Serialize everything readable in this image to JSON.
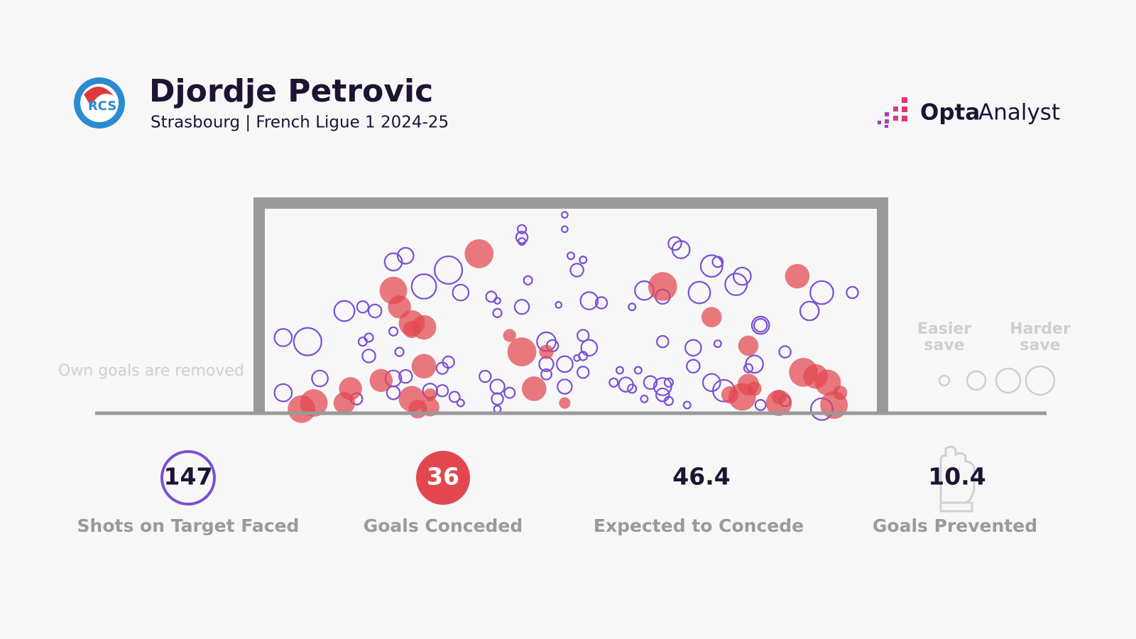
{
  "header": {
    "title": "Djordje Petrovic",
    "subtitle": "Strasbourg | French Ligue 1 2024-25"
  },
  "brand": {
    "primary": "Opta",
    "secondary": "Analyst"
  },
  "note": "Own goals are removed",
  "legend": {
    "easier": "Easier save",
    "harder": "Harder save"
  },
  "stats": [
    {
      "value": 147,
      "label": "Shots on Target Faced"
    },
    {
      "value": 36,
      "label": "Goals Conceded"
    },
    {
      "value": 46.4,
      "label": "Expected to Concede"
    },
    {
      "value": 10.4,
      "label": "Goals Prevented"
    }
  ],
  "chart_data": {
    "type": "scatter",
    "xlim": [
      0,
      100
    ],
    "ylim": [
      0,
      100
    ],
    "series": [
      {
        "color": "#7b4fd4",
        "filled": false,
        "x": [
          49,
          49,
          42,
          42,
          42,
          21,
          23,
          30,
          26,
          32,
          13,
          16,
          18,
          43,
          50,
          52,
          51,
          37,
          38,
          38,
          42,
          48,
          53,
          55,
          60,
          67,
          68,
          73,
          74,
          78,
          77,
          62,
          65,
          71,
          91,
          96,
          89,
          81,
          81,
          3,
          7,
          16,
          17,
          17,
          21,
          22,
          46,
          47,
          52,
          53,
          52,
          51,
          65,
          70,
          74,
          70,
          85,
          80,
          79,
          29,
          30,
          21,
          23,
          9,
          46,
          46,
          49,
          52,
          36,
          38,
          40,
          38,
          38,
          3,
          21,
          27,
          29,
          31,
          32,
          49,
          58,
          57,
          61,
          59,
          60,
          63,
          65,
          66,
          65,
          62,
          66,
          69,
          73,
          75,
          81,
          85,
          91,
          15
        ],
        "y": [
          97,
          90,
          90,
          86,
          84,
          74,
          77,
          70,
          62,
          59,
          50,
          52,
          50,
          65,
          77,
          75,
          70,
          57,
          55,
          49,
          52,
          53,
          55,
          54,
          52,
          83,
          80,
          72,
          74,
          67,
          63,
          60,
          57,
          59,
          59,
          59,
          50,
          43,
          43,
          37,
          35,
          35,
          37,
          28,
          40,
          30,
          35,
          33,
          38,
          32,
          28,
          27,
          35,
          32,
          34,
          23,
          30,
          24,
          22,
          22,
          25,
          17,
          18,
          17,
          24,
          19,
          24,
          20,
          18,
          13,
          10,
          7,
          2,
          10,
          10,
          11,
          11,
          8,
          5,
          13,
          21,
          15,
          21,
          14,
          12,
          15,
          13,
          15,
          9,
          7,
          6,
          4,
          15,
          11,
          4,
          6,
          2,
          7
        ],
        "size": [
          0.03,
          0.03,
          0.06,
          0.11,
          0.04,
          0.25,
          0.21,
          0.63,
          0.5,
          0.21,
          0.34,
          0.11,
          0.14,
          0.06,
          0.04,
          0.04,
          0.14,
          0.09,
          0.03,
          0.06,
          0.17,
          0.03,
          0.25,
          0.11,
          0.04,
          0.14,
          0.25,
          0.39,
          0.09,
          0.25,
          0.39,
          0.29,
          0.17,
          0.39,
          0.44,
          0.11,
          0.29,
          0.25,
          0.14,
          0.25,
          0.63,
          0.06,
          0.06,
          0.14,
          0.06,
          0.06,
          0.29,
          0.11,
          0.11,
          0.21,
          0.06,
          0.03,
          0.11,
          0.21,
          0.04,
          0.14,
          0.11,
          0.25,
          0.06,
          0.11,
          0.11,
          0.21,
          0.14,
          0.21,
          0.17,
          0.09,
          0.21,
          0.11,
          0.11,
          0.17,
          0.09,
          0.11,
          0.04,
          0.25,
          0.14,
          0.17,
          0.11,
          0.09,
          0.04,
          0.17,
          0.04,
          0.06,
          0.04,
          0.17,
          0.06,
          0.14,
          0.25,
          0.06,
          0.14,
          0.04,
          0.06,
          0.04,
          0.25,
          0.39,
          0.09,
          0.09,
          0.39,
          0.11
        ]
      },
      {
        "color": "#e2474f",
        "filled": true,
        "x": [
          35,
          21,
          22,
          24,
          26,
          65,
          73,
          87,
          40,
          42,
          46,
          26,
          19,
          14,
          13,
          8,
          6,
          24,
          25,
          27,
          27,
          44,
          49,
          79,
          79,
          76,
          78,
          84,
          84,
          88,
          90,
          92,
          93,
          94,
          80,
          24
        ],
        "y": [
          78,
          60,
          52,
          44,
          42,
          62,
          47,
          67,
          38,
          30,
          30,
          23,
          16,
          12,
          5,
          5,
          2,
          7,
          2,
          3,
          9,
          12,
          5,
          33,
          14,
          9,
          8,
          5,
          8,
          20,
          18,
          15,
          4,
          10,
          12,
          41
        ],
        "size": [
          0.69,
          0.63,
          0.44,
          0.56,
          0.5,
          0.69,
          0.34,
          0.5,
          0.14,
          0.69,
          0.17,
          0.5,
          0.44,
          0.44,
          0.39,
          0.63,
          0.63,
          0.56,
          0.29,
          0.29,
          0.14,
          0.5,
          0.11,
          0.34,
          0.39,
          0.25,
          0.63,
          0.56,
          0.17,
          0.69,
          0.5,
          0.56,
          0.63,
          0.17,
          0.17,
          0.25
        ]
      }
    ]
  }
}
